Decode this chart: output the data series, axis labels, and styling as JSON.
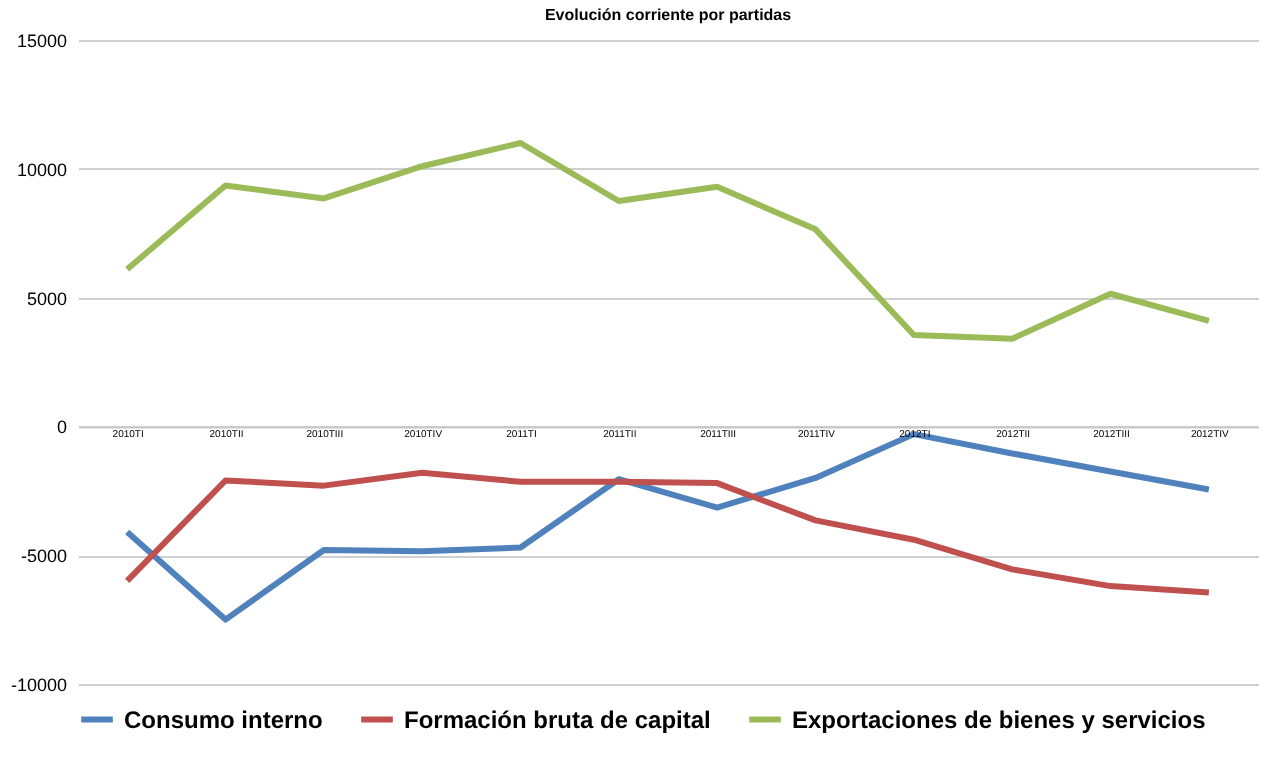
{
  "chart_data": {
    "type": "line",
    "title": "Evolución corriente por partidas",
    "categories": [
      "2010TI",
      "2010TII",
      "2010TIII",
      "2010TIV",
      "2011TI",
      "2011TII",
      "2011TIII",
      "2011TIV",
      "2012TI",
      "2012TII",
      "2012TIII",
      "2012TIV"
    ],
    "series": [
      {
        "name": "Consumo interno",
        "color": "#4f81bd",
        "values": [
          -4100,
          -7500,
          -4800,
          -4850,
          -4700,
          -2050,
          -3150,
          -2000,
          -300,
          -1050,
          -1750,
          -2450
        ]
      },
      {
        "name": "Formación bruta de capital",
        "color": "#c0504d",
        "values": [
          -6000,
          -2100,
          -2300,
          -1800,
          -2150,
          -2150,
          -2200,
          -3650,
          -4400,
          -5550,
          -6200,
          -6450
        ]
      },
      {
        "name": "Exportaciones de bienes y servicios",
        "color": "#9bbb59",
        "values": [
          6100,
          9350,
          8850,
          10100,
          11000,
          8750,
          9300,
          7650,
          3550,
          3400,
          5150,
          4100
        ]
      }
    ],
    "ylim": [
      -10000,
      15000
    ],
    "yticks": [
      -10000,
      -5000,
      0,
      5000,
      10000,
      15000
    ],
    "grid": "y",
    "legend": "bottom"
  }
}
